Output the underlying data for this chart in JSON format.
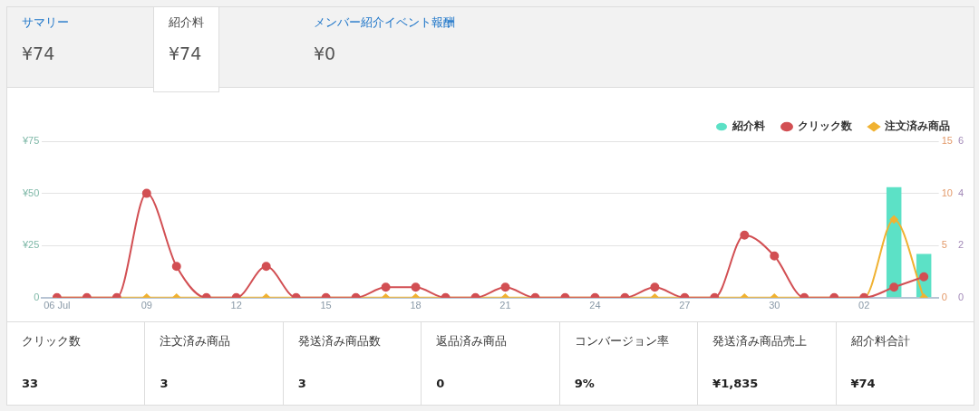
{
  "chart_data": [
    {
      "type": "other",
      "annotations": [
        "サマリー",
        "¥74",
        "紹介料",
        "¥74",
        "メンバー紹介イベント報酬",
        "¥0"
      ]
    },
    {
      "type": "bar",
      "categories": [
        "06 Jul",
        null,
        null,
        "09",
        null,
        null,
        "12",
        null,
        null,
        "15",
        null,
        null,
        "18",
        null,
        null,
        "21",
        null,
        null,
        "24",
        null,
        null,
        "27",
        null,
        null,
        "30",
        null,
        null,
        "02",
        null,
        null
      ],
      "series": [
        {
          "name": "紹介料",
          "type": "bar",
          "color": "#5ce1c6",
          "values": [
            null,
            null,
            null,
            null,
            null,
            null,
            null,
            null,
            null,
            null,
            null,
            null,
            null,
            null,
            null,
            null,
            null,
            null,
            null,
            null,
            null,
            null,
            null,
            null,
            null,
            null,
            null,
            null,
            53,
            21
          ]
        },
        {
          "name": "クリック数",
          "type": "line",
          "axis": "y2",
          "marker": "circle",
          "color": "#d24f53",
          "values": [
            0,
            0,
            0,
            10,
            3,
            0,
            0,
            3,
            0,
            0,
            0,
            1,
            1,
            0,
            0,
            1,
            0,
            0,
            0,
            0,
            1,
            0,
            0,
            6,
            4,
            0,
            0,
            0,
            1,
            2
          ]
        },
        {
          "name": "注文済み商品",
          "type": "line",
          "axis": "y3",
          "marker": "diamond",
          "color": "#f0b232",
          "values": [
            0,
            0,
            0,
            0,
            0,
            0,
            0,
            0,
            0,
            0,
            0,
            0,
            0,
            0,
            0,
            0,
            0,
            0,
            0,
            0,
            0,
            0,
            0,
            0,
            0,
            0,
            0,
            0,
            3,
            0
          ]
        }
      ],
      "ylim": [
        0,
        75
      ],
      "yticks": [
        0,
        {
          "value": 25,
          "label": "¥25"
        },
        {
          "value": 50,
          "label": "¥50"
        },
        {
          "value": 75,
          "label": "¥75"
        }
      ],
      "y2lim": [
        0,
        15
      ],
      "y2ticks": [
        0,
        5,
        10,
        15
      ],
      "y3lim": [
        0,
        6
      ],
      "y3ticks": [
        0,
        2,
        4,
        6
      ],
      "grid": "y",
      "legend": "top right"
    },
    {
      "type": "other",
      "annotations": [
        "クリック数",
        "33",
        "注文済み商品",
        "3",
        "発送済み商品数",
        "3",
        "返品済み商品",
        "0",
        "コンバージョン率",
        "9%",
        "発送済み商品売上",
        "¥1,835",
        "紹介料合計",
        "¥74"
      ]
    }
  ]
}
